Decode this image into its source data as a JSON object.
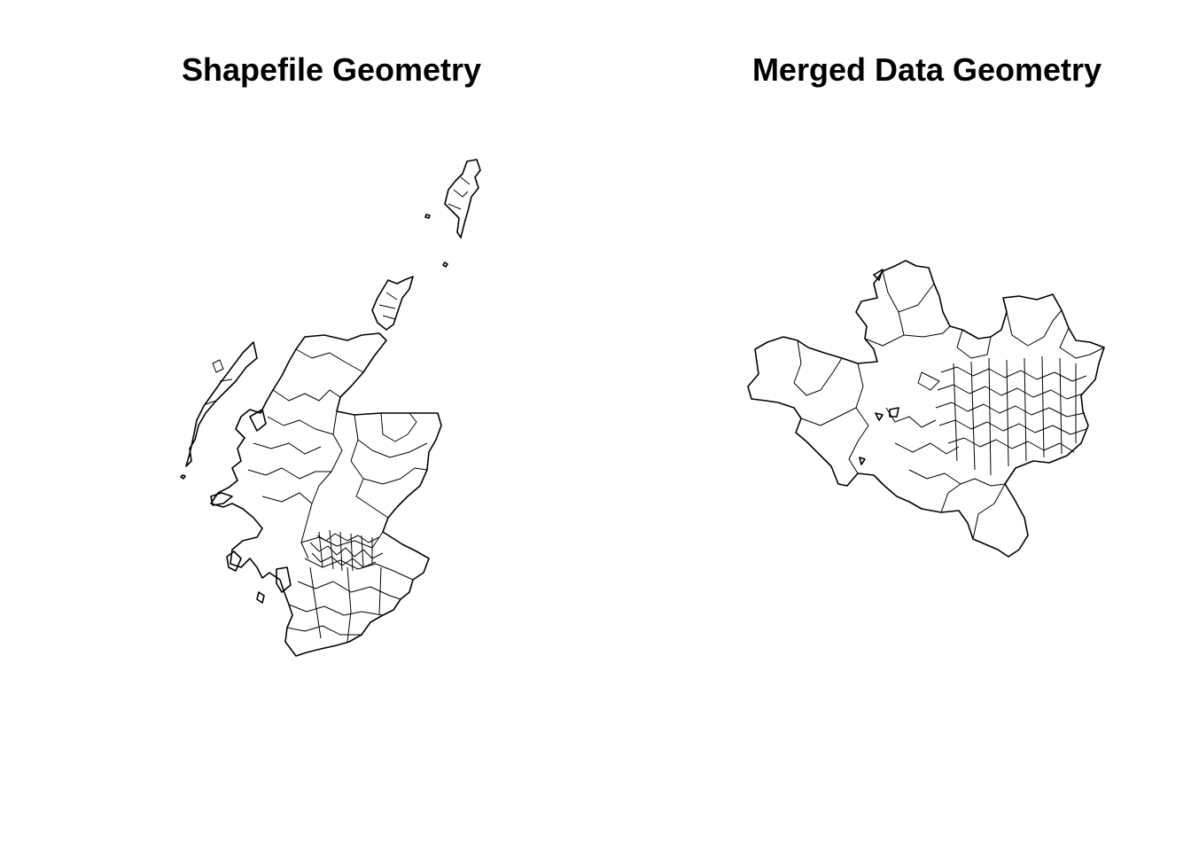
{
  "panels": [
    {
      "title": "Shapefile Geometry",
      "region": "Scotland data zones"
    },
    {
      "title": "Merged Data Geometry",
      "region": "Subset of data zones after merge"
    }
  ],
  "colors": {
    "background": "#ffffff",
    "outline": "#000000"
  }
}
